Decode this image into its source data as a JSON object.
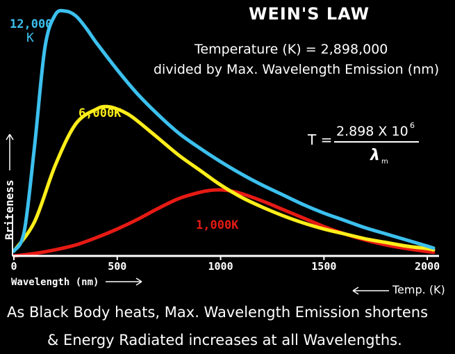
{
  "title": "WEIN'S LAW",
  "formula_line1": "Temperature (K) = 2,898,000",
  "formula_line2": "divided by Max. Wavelength Emission (nm)",
  "equation": {
    "lhs": "T =",
    "numerator": "2.898 X 10",
    "exponent": "6",
    "denominator": "λ",
    "denominator_sub": "m"
  },
  "caption_line1": "As Black Body heats, Max. Wavelength Emission shortens",
  "caption_line2": "& Energy Radiated increases at all Wavelengths.",
  "temp_axis_label": "Temp. (K)",
  "colors": {
    "background": "#000000",
    "curve_12000": "#3cc0ee",
    "curve_6000": "#ffee1a",
    "curve_1000": "#e61a14",
    "text": "#ffffff"
  },
  "chart_data": {
    "type": "line",
    "title": "WEIN'S LAW",
    "xlabel": "Wavelength (nm)",
    "ylabel": "Briteness",
    "xlim": [
      0,
      2050
    ],
    "ylim": [
      0,
      1
    ],
    "x_ticks": [
      0,
      500,
      1000,
      1500,
      2000
    ],
    "x_tick_labels": [
      "0",
      "500",
      "1000",
      "1500",
      "2000"
    ],
    "grid": false,
    "series": [
      {
        "name": "12,000 K",
        "label_lines": [
          "12,000",
          "K"
        ],
        "color": "#3cc0ee",
        "x": [
          0,
          50,
          100,
          150,
          200,
          250,
          300,
          350,
          400,
          500,
          600,
          700,
          800,
          900,
          1000,
          1100,
          1200,
          1300,
          1400,
          1500,
          1600,
          1700,
          1800,
          1900,
          2000,
          2030
        ],
        "y": [
          0.02,
          0.1,
          0.45,
          0.85,
          0.985,
          1.0,
          0.98,
          0.93,
          0.87,
          0.76,
          0.66,
          0.575,
          0.5,
          0.44,
          0.385,
          0.335,
          0.29,
          0.25,
          0.21,
          0.175,
          0.145,
          0.115,
          0.09,
          0.065,
          0.04,
          0.032
        ]
      },
      {
        "name": "6,000 K",
        "label_lines": [
          "6,000K"
        ],
        "color": "#ffee1a",
        "x": [
          0,
          100,
          200,
          300,
          400,
          450,
          500,
          550,
          600,
          700,
          800,
          900,
          1000,
          1100,
          1200,
          1300,
          1400,
          1500,
          1600,
          1700,
          1800,
          1900,
          2000,
          2030
        ],
        "y": [
          0.02,
          0.14,
          0.37,
          0.54,
          0.6,
          0.61,
          0.6,
          0.58,
          0.55,
          0.48,
          0.41,
          0.35,
          0.29,
          0.24,
          0.2,
          0.165,
          0.135,
          0.11,
          0.09,
          0.07,
          0.055,
          0.04,
          0.03,
          0.025
        ]
      },
      {
        "name": "1,000 K",
        "label_lines": [
          "1,000K"
        ],
        "color": "#e61a14",
        "x": [
          0,
          100,
          200,
          300,
          400,
          500,
          600,
          700,
          800,
          900,
          950,
          1000,
          1050,
          1100,
          1200,
          1300,
          1400,
          1500,
          1600,
          1700,
          1800,
          1900,
          2000,
          2030
        ],
        "y": [
          0.0,
          0.01,
          0.025,
          0.045,
          0.075,
          0.11,
          0.15,
          0.195,
          0.235,
          0.26,
          0.268,
          0.27,
          0.265,
          0.255,
          0.225,
          0.19,
          0.155,
          0.12,
          0.09,
          0.065,
          0.045,
          0.03,
          0.018,
          0.015
        ]
      }
    ]
  }
}
